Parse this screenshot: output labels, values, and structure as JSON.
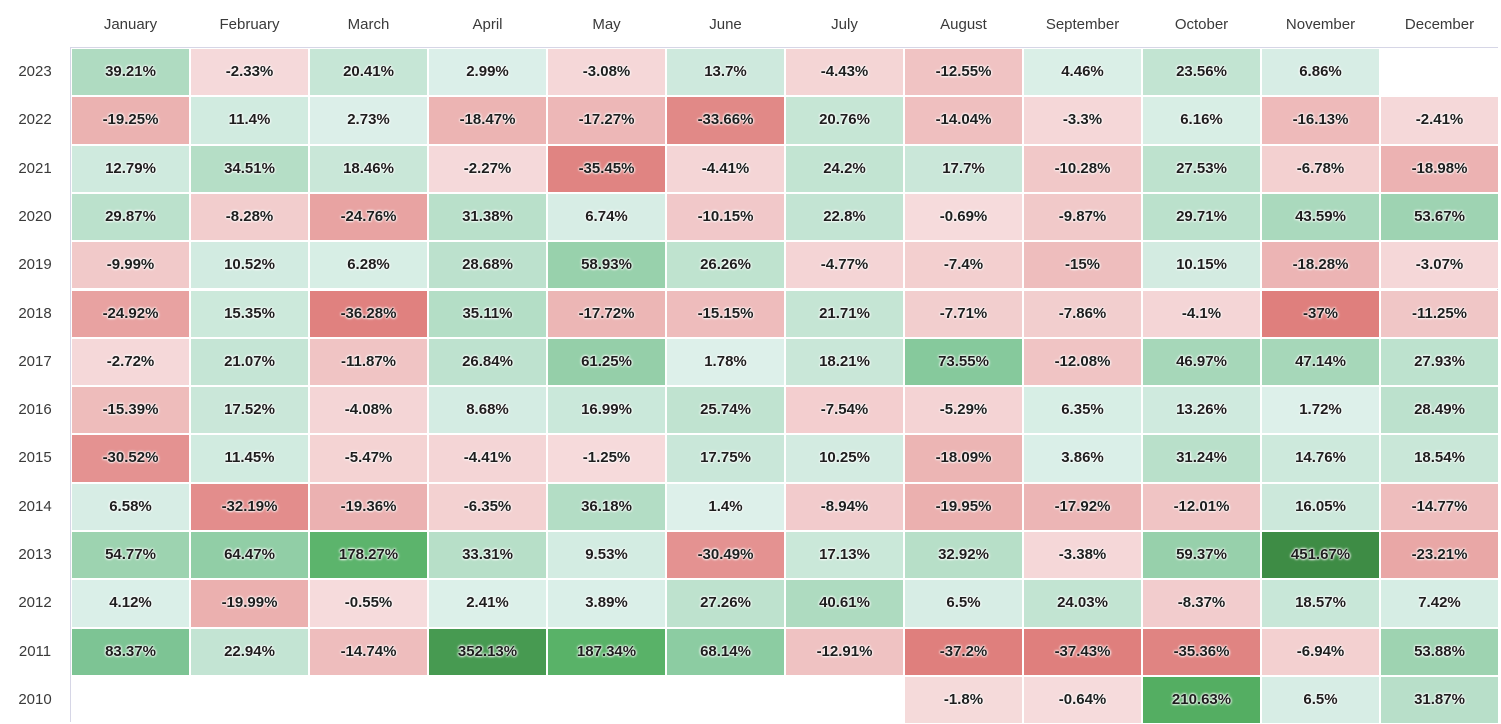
{
  "chart_data": {
    "type": "heatmap",
    "x_categories": [
      "January",
      "February",
      "March",
      "April",
      "May",
      "June",
      "July",
      "August",
      "September",
      "October",
      "November",
      "December"
    ],
    "y_categories": [
      "2023",
      "2022",
      "2021",
      "2020",
      "2019",
      "2018",
      "2017",
      "2016",
      "2015",
      "2014",
      "2013",
      "2012",
      "2011",
      "2010"
    ],
    "values": [
      [
        39.21,
        -2.33,
        20.41,
        2.99,
        -3.08,
        13.7,
        -4.43,
        -12.55,
        4.46,
        23.56,
        6.86,
        null
      ],
      [
        -19.25,
        11.4,
        2.73,
        -18.47,
        -17.27,
        -33.66,
        20.76,
        -14.04,
        -3.3,
        6.16,
        -16.13,
        -2.41
      ],
      [
        12.79,
        34.51,
        18.46,
        -2.27,
        -35.45,
        -4.41,
        24.2,
        17.7,
        -10.28,
        27.53,
        -6.78,
        -18.98
      ],
      [
        29.87,
        -8.28,
        -24.76,
        31.38,
        6.74,
        -10.15,
        22.8,
        -0.69,
        -9.87,
        29.71,
        43.59,
        53.67
      ],
      [
        -9.99,
        10.52,
        6.28,
        28.68,
        58.93,
        26.26,
        -4.77,
        -7.4,
        -15,
        10.15,
        -18.28,
        -3.07
      ],
      [
        -24.92,
        15.35,
        -36.28,
        35.11,
        -17.72,
        -15.15,
        21.71,
        -7.71,
        -7.86,
        -4.1,
        -37,
        -11.25
      ],
      [
        -2.72,
        21.07,
        -11.87,
        26.84,
        61.25,
        1.78,
        18.21,
        73.55,
        -12.08,
        46.97,
        47.14,
        27.93
      ],
      [
        -15.39,
        17.52,
        -4.08,
        8.68,
        16.99,
        25.74,
        -7.54,
        -5.29,
        6.35,
        13.26,
        1.72,
        28.49
      ],
      [
        -30.52,
        11.45,
        -5.47,
        -4.41,
        -1.25,
        17.75,
        10.25,
        -18.09,
        3.86,
        31.24,
        14.76,
        18.54
      ],
      [
        6.58,
        -32.19,
        -19.36,
        -6.35,
        36.18,
        1.4,
        -8.94,
        -19.95,
        -17.92,
        -12.01,
        16.05,
        -14.77
      ],
      [
        54.77,
        64.47,
        178.27,
        33.31,
        9.53,
        -30.49,
        17.13,
        32.92,
        -3.38,
        59.37,
        451.67,
        -23.21
      ],
      [
        4.12,
        -19.99,
        -0.55,
        2.41,
        3.89,
        27.26,
        40.61,
        6.5,
        24.03,
        -8.37,
        18.57,
        7.42
      ],
      [
        83.37,
        22.94,
        -14.74,
        352.13,
        187.34,
        68.14,
        -12.91,
        -37.2,
        -37.43,
        -35.36,
        -6.94,
        53.88
      ],
      [
        null,
        null,
        null,
        null,
        null,
        null,
        null,
        -1.8,
        -0.64,
        210.63,
        6.5,
        31.87
      ]
    ],
    "value_suffix": "%",
    "colors": {
      "negative_light": "#f6dcdd",
      "negative_dark": "#df7f7d",
      "neutral_positive": "#dff1ec",
      "positive_mid": "#7ec595",
      "positive_strong": "#55b063",
      "positive_deep": "#3e8c45",
      "empty": "#ffffff"
    }
  }
}
